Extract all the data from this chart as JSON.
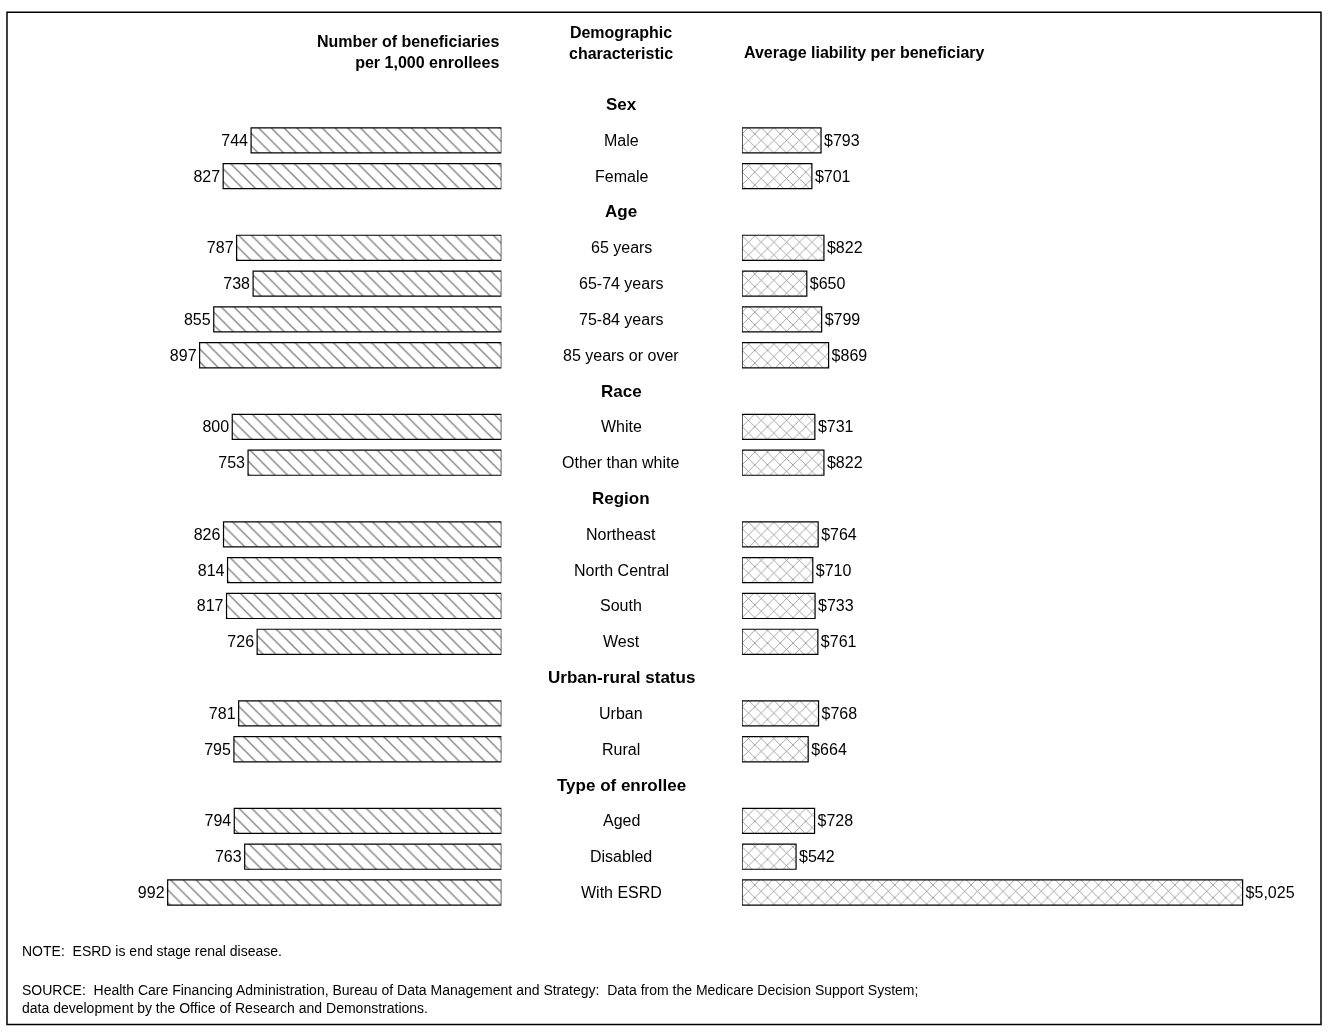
{
  "chart_data": [
    {
      "type": "bar",
      "orientation": "horizontal",
      "title": "Number of beneficiaries per 1,000 enrollees",
      "ylabel": "Demographic characteristic",
      "tick_labels": "y",
      "categories": [
        "Sex",
        "Male",
        "Female",
        "Age",
        "65 years",
        "65-74 years",
        "75-84 years",
        "85 years or over",
        "Race",
        "White",
        "Other than white",
        "Region",
        "Northeast",
        "North Central",
        "South",
        "West",
        "Urban-rural status",
        "Urban",
        "Rural",
        "Type of enrollee",
        "Aged",
        "Disabled",
        "With ESRD"
      ],
      "values": [
        null,
        744,
        827,
        null,
        787,
        738,
        855,
        897,
        null,
        800,
        753,
        null,
        826,
        814,
        817,
        726,
        null,
        781,
        795,
        null,
        794,
        763,
        992
      ],
      "color": "#000000",
      "data_labels": true
    },
    {
      "type": "bar",
      "orientation": "horizontal",
      "title": "Average liability per beneficiary",
      "tick_labels": false,
      "categories": [
        "Sex",
        "Male",
        "Female",
        "Age",
        "65 years",
        "65-74 years",
        "75-84 years",
        "85 years or over",
        "Race",
        "White",
        "Other than white",
        "Region",
        "Northeast",
        "North Central",
        "South",
        "West",
        "Urban-rural status",
        "Urban",
        "Rural",
        "Type of enrollee",
        "Aged",
        "Disabled",
        "With ESRD"
      ],
      "values": [
        null,
        793,
        701,
        null,
        822,
        650,
        799,
        869,
        null,
        731,
        822,
        null,
        764,
        710,
        733,
        761,
        null,
        768,
        664,
        null,
        728,
        542,
        5025
      ],
      "value_labels": [
        null,
        "$793",
        "$701",
        null,
        "$822",
        "$650",
        "$799",
        "$869",
        null,
        "$731",
        "$822",
        null,
        "$764",
        "$710",
        "$733",
        "$761",
        null,
        "$768",
        "$664",
        null,
        "$728",
        "$542",
        "$5,025"
      ],
      "color": "#000000",
      "annotations": [
        "NOTE:  ESRD is end stage renal disease.",
        "SOURCE:  Health Care Financing Administration, Bureau of Data Management and Strategy:  Data from the Medicare Decision Support System;\ndata development by the Office of Research and Demonstrations."
      ]
    }
  ]
}
